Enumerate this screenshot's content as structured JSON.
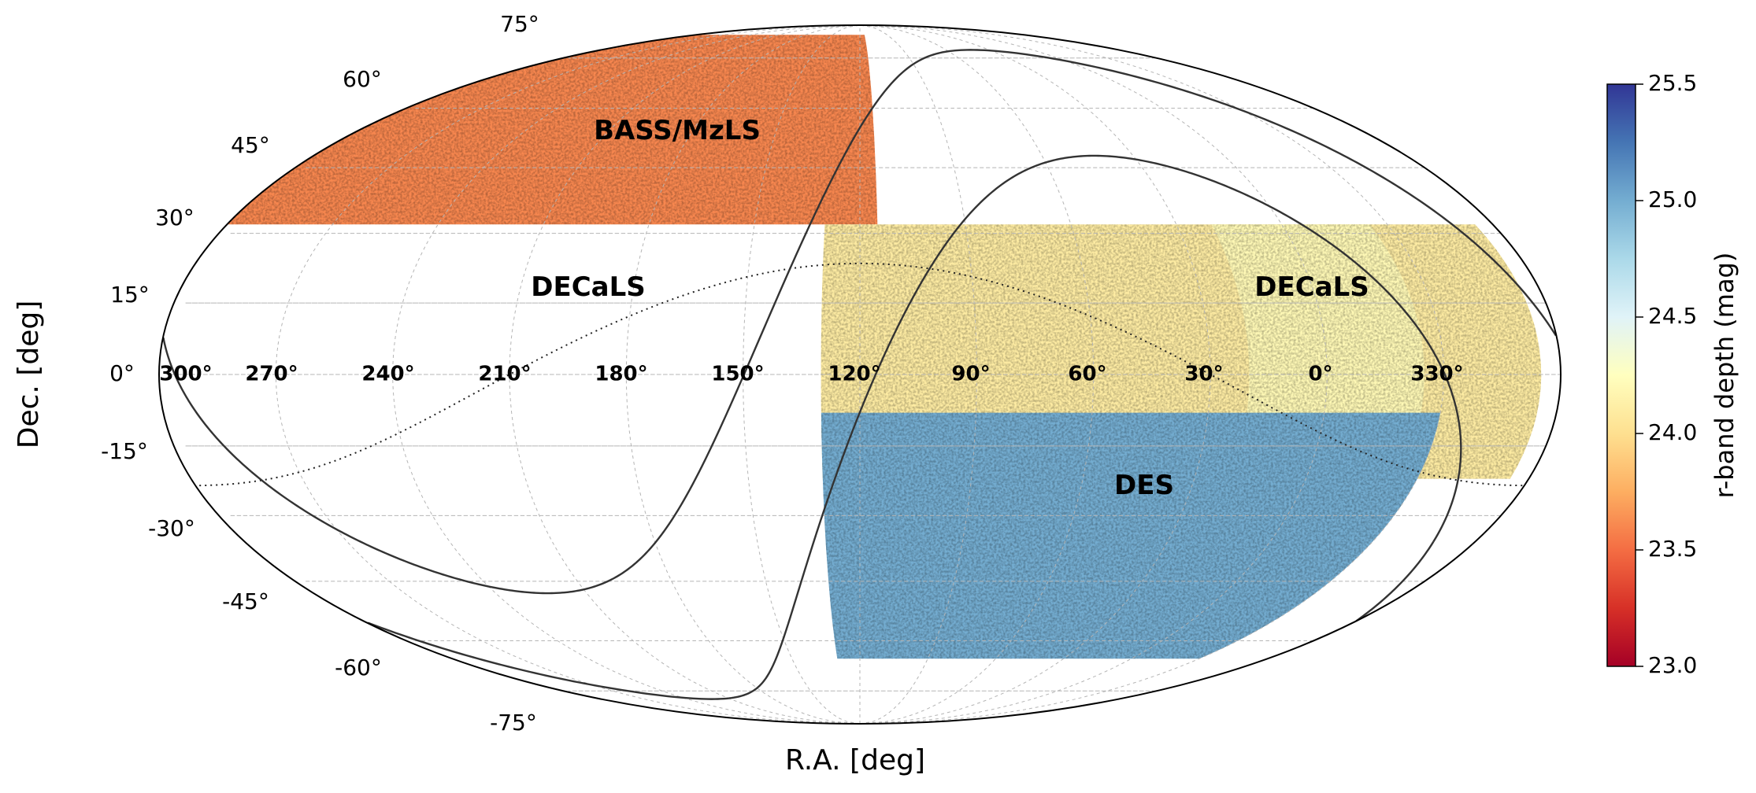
{
  "chart_data": {
    "type": "heatmap",
    "projection": "mollweide",
    "title": "",
    "xlabel": "R.A. [deg]",
    "ylabel": "Dec. [deg]",
    "ra_ticks": [
      "300°",
      "270°",
      "240°",
      "210°",
      "180°",
      "150°",
      "120°",
      "90°",
      "60°",
      "30°",
      "0°",
      "330°"
    ],
    "ra_tick_values": [
      300,
      270,
      240,
      210,
      180,
      150,
      120,
      90,
      60,
      30,
      0,
      330
    ],
    "dec_ticks": [
      "75°",
      "60°",
      "45°",
      "30°",
      "15°",
      "0°",
      "-15°",
      "-30°",
      "-45°",
      "-60°",
      "-75°"
    ],
    "dec_tick_values": [
      75,
      60,
      45,
      30,
      15,
      0,
      -15,
      -30,
      -45,
      -60,
      -75
    ],
    "grid": true,
    "colorbar": {
      "label": "r-band depth (mag)",
      "range": [
        23.0,
        25.5
      ],
      "ticks": [
        "25.5",
        "25.0",
        "24.5",
        "24.0",
        "23.5",
        "23.0"
      ],
      "tick_values": [
        25.5,
        25.0,
        24.5,
        24.0,
        23.5,
        23.0
      ],
      "colormap": "RdYlBu",
      "colors": [
        "#a50026",
        "#d73027",
        "#f46d43",
        "#fdae61",
        "#fee090",
        "#ffffbf",
        "#e0f3f8",
        "#abd9e9",
        "#74add1",
        "#4575b4",
        "#313695"
      ]
    },
    "regions": [
      {
        "name": "BASS/MzLS",
        "label": "BASS/MzLS",
        "dec_range": [
          32,
          84
        ],
        "ra_range": [
          85,
          270
        ],
        "typical_depth": 23.6
      },
      {
        "name": "DECaLS",
        "label": "DECaLS",
        "dec_range": [
          -22,
          32
        ],
        "ra_range": [
          100,
          275
        ],
        "typical_depth": 24.1
      },
      {
        "name": "DECaLS",
        "label": "DECaLS",
        "dec_range": [
          -20,
          32
        ],
        "ra_range": [
          305,
          350
        ],
        "typical_depth": 24.2
      },
      {
        "name": "DES",
        "label": "DES",
        "dec_range": [
          -65,
          -8
        ],
        "ra_range": [
          300,
          100
        ],
        "typical_depth": 25.0
      }
    ],
    "curves": [
      {
        "name": "galactic-plane-boundaries",
        "style": "solid",
        "color": "#333333"
      },
      {
        "name": "ecliptic",
        "style": "dotted",
        "color": "#222222"
      }
    ]
  }
}
